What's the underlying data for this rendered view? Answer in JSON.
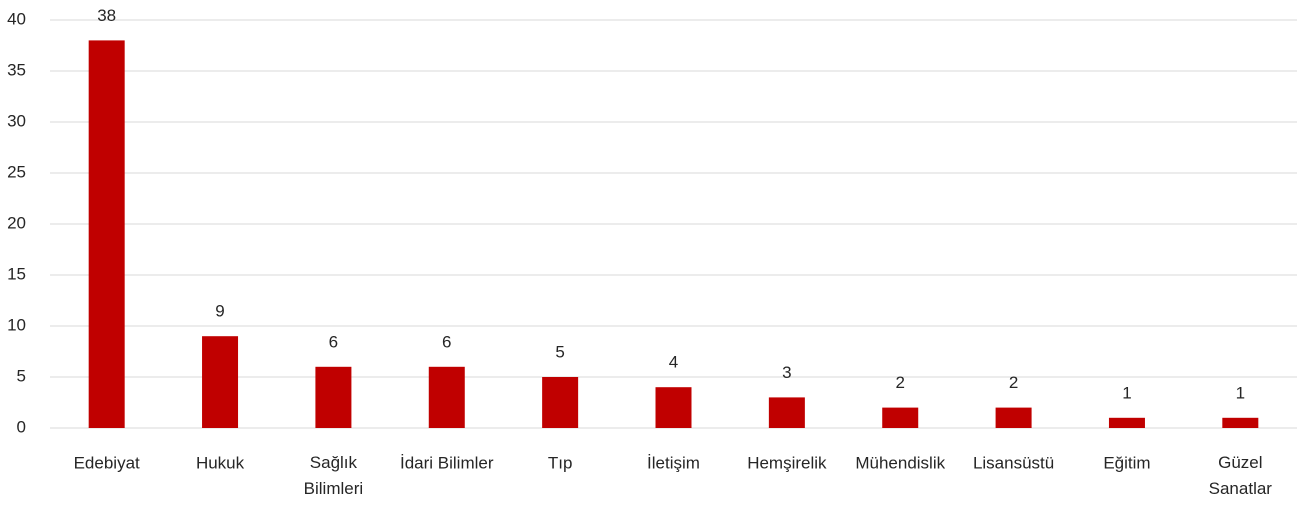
{
  "chart_data": {
    "type": "bar",
    "categories": [
      "Edebiyat",
      "Hukuk",
      "Sağlık Bilimleri",
      "İdari Bilimler",
      "Tıp",
      "İletişim",
      "Hemşirelik",
      "Mühendislik",
      "Lisansüstü",
      "Eğitim",
      "Güzel Sanatlar"
    ],
    "values": [
      38,
      9,
      6,
      6,
      5,
      4,
      3,
      2,
      2,
      1,
      1
    ],
    "color": "#c00000",
    "ylim": [
      0,
      40
    ],
    "yticks": [
      0,
      5,
      10,
      15,
      20,
      25,
      30,
      35,
      40
    ],
    "grid": true
  }
}
